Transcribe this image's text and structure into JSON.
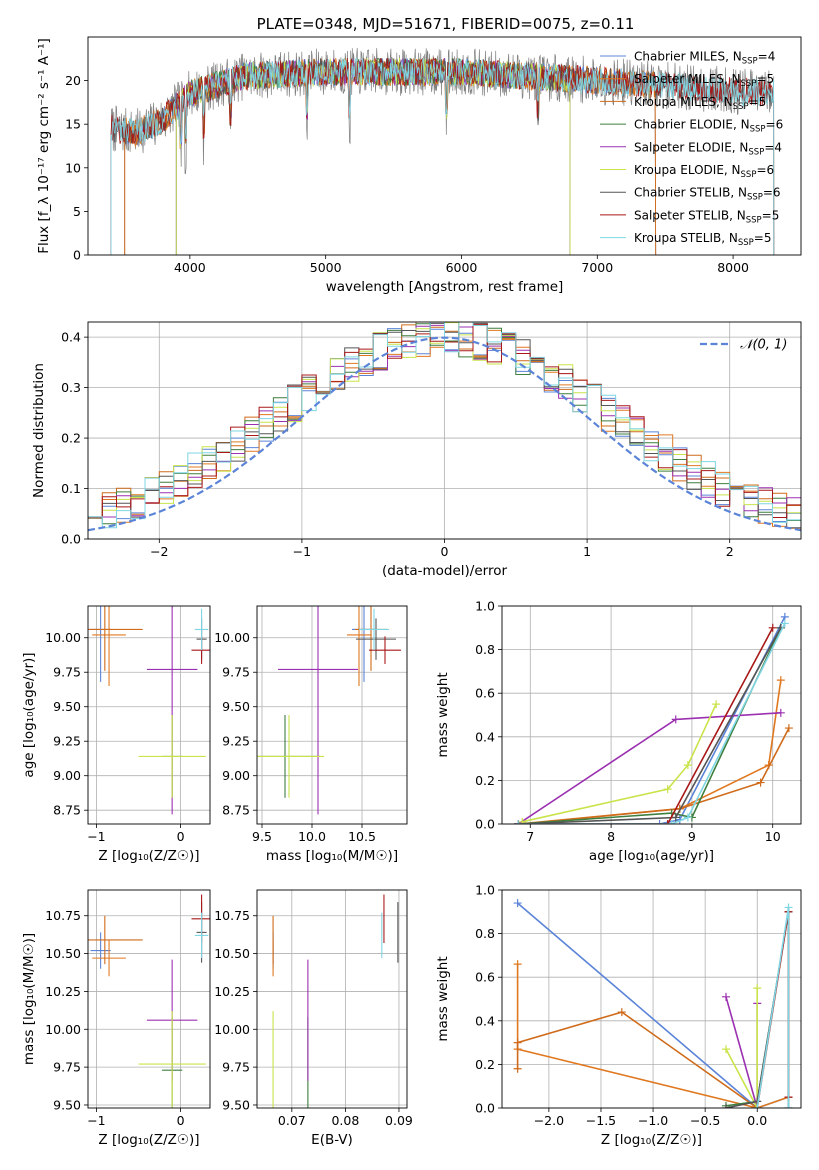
{
  "colors": {
    "Chabrier MILES": "#5b84d8",
    "Salpeter MILES": "#e07820",
    "Kroupa MILES": "#cf6b1a",
    "Chabrier ELODIE": "#3f7f3f",
    "Salpeter ELODIE": "#9b30b0",
    "Kroupa ELODIE": "#c8e44a",
    "Chabrier STELIB": "#555555",
    "Salpeter STELIB": "#a81818",
    "Kroupa STELIB": "#7fd6e3",
    "gauss": "#5b84d8",
    "grid": "#b0b0b0"
  },
  "chart_data": [
    {
      "id": "spectrum",
      "type": "line",
      "title": "PLATE=0348, MJD=51671, FIBERID=0075, z=0.11",
      "xlabel": "wavelength [Angstrom, rest frame]",
      "ylabel": "Flux [f_λ 10⁻¹⁷ erg cm⁻² s⁻¹ A⁻¹]",
      "xlim": [
        3250,
        8500
      ],
      "ylim": [
        0,
        25
      ],
      "xticks": [
        4000,
        5000,
        6000,
        7000,
        8000
      ],
      "yticks": [
        0,
        5,
        10,
        15,
        20
      ],
      "grid": false,
      "legend_position": "upper right",
      "series": [
        {
          "name": "Chabrier MILES, N_SSP=4",
          "key": "Chabrier MILES",
          "range": [
            3520,
            7430
          ]
        },
        {
          "name": "Salpeter MILES, N_SSP=5",
          "key": "Salpeter MILES",
          "range": [
            3520,
            7430
          ]
        },
        {
          "name": "Kroupa MILES, N_SSP=5",
          "key": "Kroupa MILES",
          "range": [
            3520,
            7430
          ]
        },
        {
          "name": "Chabrier ELODIE, N_SSP=6",
          "key": "Chabrier ELODIE",
          "range": [
            3900,
            6800
          ]
        },
        {
          "name": "Salpeter ELODIE, N_SSP=4",
          "key": "Salpeter ELODIE",
          "range": [
            3900,
            6800
          ]
        },
        {
          "name": "Kroupa ELODIE, N_SSP=6",
          "key": "Kroupa ELODIE",
          "range": [
            3900,
            6800
          ]
        },
        {
          "name": "Chabrier STELIB, N_SSP=6",
          "key": "Chabrier STELIB",
          "range": [
            3420,
            8300
          ]
        },
        {
          "name": "Salpeter STELIB, N_SSP=5",
          "key": "Salpeter STELIB",
          "range": [
            3420,
            8300
          ]
        },
        {
          "name": "Kroupa STELIB, N_SSP=5",
          "key": "Kroupa STELIB",
          "range": [
            3420,
            8300
          ]
        }
      ],
      "continuum": [
        [
          3420,
          14.5
        ],
        [
          3600,
          14.0
        ],
        [
          3800,
          15.5
        ],
        [
          4000,
          18.5
        ],
        [
          4400,
          20.5
        ],
        [
          5000,
          21.0
        ],
        [
          6000,
          21.0
        ],
        [
          7000,
          20.0
        ],
        [
          8300,
          18.5
        ]
      ],
      "absorption_lines": [
        3934,
        3969,
        4102,
        4300,
        4861,
        5175,
        5890,
        6563
      ],
      "cutoffs": [
        3520,
        3900,
        6800,
        7430
      ]
    },
    {
      "id": "residuals",
      "type": "line",
      "xlabel": "(data-model)/error",
      "ylabel": "Normed distribution",
      "xlim": [
        -2.5,
        2.5
      ],
      "ylim": [
        0,
        0.43
      ],
      "xticks": [
        -2,
        -1,
        0,
        1,
        2
      ],
      "yticks": [
        0.0,
        0.1,
        0.2,
        0.3,
        0.4
      ],
      "grid": true,
      "legend": [
        "𝒩(0, 1)"
      ],
      "legend_position": "upper right",
      "bin_width": 0.1
    },
    {
      "id": "age_vs_Z",
      "type": "scatter",
      "xlabel": "Z [log₁₀(Z/Z☉)]",
      "ylabel": "age  [log₁₀(age/yr)]",
      "xlim": [
        -1.1,
        0.35
      ],
      "ylim": [
        8.65,
        10.23
      ],
      "xticks": [
        -1,
        0
      ],
      "yticks": [
        8.75,
        9.0,
        9.25,
        9.5,
        9.75,
        10.0
      ],
      "grid": true,
      "points": [
        {
          "key": "Chabrier MILES",
          "x": -0.95,
          "xerr": 0.12,
          "y": 10.06,
          "yerr": 0.38
        },
        {
          "key": "Salpeter MILES",
          "x": -0.85,
          "xerr": 0.2,
          "y": 10.02,
          "yerr": 0.37
        },
        {
          "key": "Kroupa MILES",
          "x": -0.9,
          "xerr": 0.45,
          "y": 10.06,
          "yerr": 0.3
        },
        {
          "key": "Chabrier ELODIE",
          "x": -0.1,
          "xerr": 0.12,
          "y": 9.14,
          "yerr": 0.3
        },
        {
          "key": "Salpeter ELODIE",
          "x": -0.1,
          "xerr": 0.3,
          "y": 9.77,
          "yerr": 1.05
        },
        {
          "key": "Kroupa ELODIE",
          "x": -0.1,
          "xerr": 0.4,
          "y": 9.14,
          "yerr": 0.3
        },
        {
          "key": "Chabrier STELIB",
          "x": 0.25,
          "xerr": 0.06,
          "y": 9.99,
          "yerr": 0.15
        },
        {
          "key": "Salpeter STELIB",
          "x": 0.25,
          "xerr": 0.12,
          "y": 9.91,
          "yerr": 0.1
        },
        {
          "key": "Kroupa STELIB",
          "x": 0.25,
          "xerr": 0.08,
          "y": 10.06,
          "yerr": 0.15
        }
      ]
    },
    {
      "id": "age_vs_mass",
      "type": "scatter",
      "xlabel": "mass [log₁₀(M/M☉)]",
      "ylabel": "",
      "xlim": [
        9.45,
        10.95
      ],
      "ylim": [
        8.65,
        10.23
      ],
      "xticks": [
        9.5,
        10.0,
        10.5
      ],
      "yticks": [
        8.75,
        9.0,
        9.25,
        9.5,
        9.75,
        10.0
      ],
      "grid": true,
      "points": [
        {
          "key": "Chabrier MILES",
          "x": 10.52,
          "xerr": 0.12,
          "y": 10.06,
          "yerr": 0.38
        },
        {
          "key": "Salpeter MILES",
          "x": 10.47,
          "xerr": 0.12,
          "y": 10.02,
          "yerr": 0.37
        },
        {
          "key": "Kroupa MILES",
          "x": 10.59,
          "xerr": 0.16,
          "y": 10.06,
          "yerr": 0.3
        },
        {
          "key": "Chabrier ELODIE",
          "x": 9.73,
          "xerr": 0.35,
          "y": 9.14,
          "yerr": 0.3
        },
        {
          "key": "Salpeter ELODIE",
          "x": 10.06,
          "xerr": 0.4,
          "y": 9.77,
          "yerr": 1.05
        },
        {
          "key": "Kroupa ELODIE",
          "x": 9.77,
          "xerr": 0.35,
          "y": 9.14,
          "yerr": 0.3
        },
        {
          "key": "Chabrier STELIB",
          "x": 10.64,
          "xerr": 0.2,
          "y": 9.99,
          "yerr": 0.15
        },
        {
          "key": "Salpeter STELIB",
          "x": 10.73,
          "xerr": 0.16,
          "y": 9.91,
          "yerr": 0.1
        },
        {
          "key": "Kroupa STELIB",
          "x": 10.62,
          "xerr": 0.15,
          "y": 10.06,
          "yerr": 0.15
        }
      ]
    },
    {
      "id": "mw_vs_age",
      "type": "line",
      "xlabel": "age  [log₁₀(age/yr)]",
      "ylabel": "mass weight",
      "xlim": [
        6.65,
        10.35
      ],
      "ylim": [
        0,
        1.0
      ],
      "xticks": [
        7,
        8,
        9,
        10
      ],
      "yticks": [
        0.0,
        0.2,
        0.4,
        0.6,
        0.8,
        1.0
      ],
      "grid": true,
      "series": [
        {
          "key": "Chabrier MILES",
          "x": [
            6.85,
            8.6,
            8.85,
            10.15
          ],
          "y": [
            0.0,
            0.0,
            0.02,
            0.95
          ]
        },
        {
          "key": "Salpeter MILES",
          "x": [
            6.85,
            8.85,
            9.95,
            10.1
          ],
          "y": [
            0.0,
            0.07,
            0.27,
            0.66
          ]
        },
        {
          "key": "Kroupa MILES",
          "x": [
            6.9,
            8.85,
            9.85,
            10.2
          ],
          "y": [
            0.0,
            0.07,
            0.19,
            0.44
          ]
        },
        {
          "key": "Chabrier ELODIE",
          "x": [
            6.85,
            8.75,
            9.0,
            10.1
          ],
          "y": [
            0.0,
            0.05,
            0.03,
            0.9
          ]
        },
        {
          "key": "Salpeter ELODIE",
          "x": [
            6.85,
            8.8,
            10.1
          ],
          "y": [
            0.0,
            0.48,
            0.51
          ]
        },
        {
          "key": "Kroupa ELODIE",
          "x": [
            6.9,
            8.7,
            8.95,
            9.3
          ],
          "y": [
            0.01,
            0.16,
            0.27,
            0.55
          ]
        },
        {
          "key": "Chabrier STELIB",
          "x": [
            6.85,
            8.8,
            10.1
          ],
          "y": [
            0.0,
            0.03,
            0.9
          ]
        },
        {
          "key": "Salpeter STELIB",
          "x": [
            6.85,
            8.7,
            10.0
          ],
          "y": [
            0.0,
            0.0,
            0.9
          ]
        },
        {
          "key": "Kroupa STELIB",
          "x": [
            6.85,
            8.75,
            8.95,
            10.15
          ],
          "y": [
            0.0,
            0.0,
            0.03,
            0.92
          ]
        }
      ]
    },
    {
      "id": "mass_vs_Z",
      "type": "scatter",
      "xlabel": "Z [log₁₀(Z/Z☉)]",
      "ylabel": "mass [log₁₀(M/M☉)]",
      "xlim": [
        -1.1,
        0.35
      ],
      "ylim": [
        9.48,
        10.92
      ],
      "xticks": [
        -1,
        0
      ],
      "yticks": [
        9.5,
        9.75,
        10.0,
        10.25,
        10.5,
        10.75
      ],
      "grid": true,
      "points": [
        {
          "key": "Chabrier MILES",
          "x": -0.95,
          "xerr": 0.12,
          "y": 10.52,
          "yerr": 0.12
        },
        {
          "key": "Salpeter MILES",
          "x": -0.85,
          "xerr": 0.2,
          "y": 10.47,
          "yerr": 0.12
        },
        {
          "key": "Kroupa MILES",
          "x": -0.9,
          "xerr": 0.45,
          "y": 10.59,
          "yerr": 0.16
        },
        {
          "key": "Chabrier ELODIE",
          "x": -0.1,
          "xerr": 0.12,
          "y": 9.73,
          "yerr": 0.35
        },
        {
          "key": "Salpeter ELODIE",
          "x": -0.1,
          "xerr": 0.3,
          "y": 10.06,
          "yerr": 0.4
        },
        {
          "key": "Kroupa ELODIE",
          "x": -0.1,
          "xerr": 0.4,
          "y": 9.77,
          "yerr": 0.35
        },
        {
          "key": "Chabrier STELIB",
          "x": 0.25,
          "xerr": 0.06,
          "y": 10.64,
          "yerr": 0.2
        },
        {
          "key": "Salpeter STELIB",
          "x": 0.25,
          "xerr": 0.12,
          "y": 10.73,
          "yerr": 0.16
        },
        {
          "key": "Kroupa STELIB",
          "x": 0.25,
          "xerr": 0.08,
          "y": 10.62,
          "yerr": 0.15
        }
      ]
    },
    {
      "id": "mass_vs_ebv",
      "type": "scatter",
      "xlabel": "E(B-V)",
      "ylabel": "",
      "xlim": [
        0.0635,
        0.0915
      ],
      "ylim": [
        9.48,
        10.92
      ],
      "xticks": [
        0.07,
        0.08,
        0.09
      ],
      "yticks": [
        9.5,
        9.75,
        10.0,
        10.25,
        10.5,
        10.75
      ],
      "grid": true,
      "points": [
        {
          "key": "Chabrier MILES",
          "x": 0.0665,
          "y": 10.52,
          "yerr": 0.12
        },
        {
          "key": "Salpeter MILES",
          "x": 0.0665,
          "y": 10.47,
          "yerr": 0.12
        },
        {
          "key": "Kroupa MILES",
          "x": 0.0665,
          "y": 10.59,
          "yerr": 0.16
        },
        {
          "key": "Chabrier ELODIE",
          "x": 0.073,
          "y": 9.73,
          "yerr": 0.35
        },
        {
          "key": "Salpeter ELODIE",
          "x": 0.073,
          "y": 10.06,
          "yerr": 0.4
        },
        {
          "key": "Kroupa ELODIE",
          "x": 0.0665,
          "y": 9.77,
          "yerr": 0.35
        },
        {
          "key": "Chabrier STELIB",
          "x": 0.0898,
          "y": 10.64,
          "yerr": 0.2
        },
        {
          "key": "Salpeter STELIB",
          "x": 0.0872,
          "y": 10.73,
          "yerr": 0.16
        },
        {
          "key": "Kroupa STELIB",
          "x": 0.0868,
          "y": 10.62,
          "yerr": 0.15
        }
      ]
    },
    {
      "id": "mw_vs_Z",
      "type": "line",
      "xlabel": "Z [log₁₀(Z/Z☉)]",
      "ylabel": "mass weight",
      "xlim": [
        -2.45,
        0.42
      ],
      "ylim": [
        0,
        1.0
      ],
      "xticks": [
        -2.0,
        -1.5,
        -1.0,
        -0.5,
        0.0
      ],
      "yticks": [
        0.0,
        0.2,
        0.4,
        0.6,
        0.8,
        1.0
      ],
      "grid": true,
      "series": [
        {
          "key": "Chabrier MILES",
          "x": [
            -2.3,
            0.0,
            0.0,
            0.3
          ],
          "y": [
            0.94,
            0.0,
            0.0,
            0.05
          ]
        },
        {
          "key": "Salpeter MILES",
          "x": [
            -2.3,
            -2.3,
            0.0,
            0.3
          ],
          "y": [
            0.66,
            0.27,
            0.0,
            0.05
          ]
        },
        {
          "key": "Kroupa MILES",
          "x": [
            -2.3,
            -2.3,
            -1.3,
            0.0
          ],
          "y": [
            0.18,
            0.3,
            0.44,
            0.0
          ]
        },
        {
          "key": "Chabrier ELODIE",
          "x": [
            -0.3,
            0.0,
            0.3
          ],
          "y": [
            0.01,
            0.03,
            0.9
          ]
        },
        {
          "key": "Salpeter ELODIE",
          "x": [
            -0.3,
            0.0,
            0.0
          ],
          "y": [
            0.51,
            0.0,
            0.48
          ]
        },
        {
          "key": "Kroupa ELODIE",
          "x": [
            -0.3,
            0.0,
            0.0
          ],
          "y": [
            0.27,
            0.0,
            0.55
          ]
        },
        {
          "key": "Chabrier STELIB",
          "x": [
            -0.3,
            0.0,
            0.3,
            0.3
          ],
          "y": [
            0.0,
            0.03,
            0.9,
            0.0
          ]
        },
        {
          "key": "Salpeter STELIB",
          "x": [
            0.0,
            0.3,
            0.3
          ],
          "y": [
            0.0,
            0.9,
            0.05
          ]
        },
        {
          "key": "Kroupa STELIB",
          "x": [
            0.0,
            0.3,
            0.3
          ],
          "y": [
            0.0,
            0.92,
            0.0
          ]
        }
      ]
    }
  ]
}
